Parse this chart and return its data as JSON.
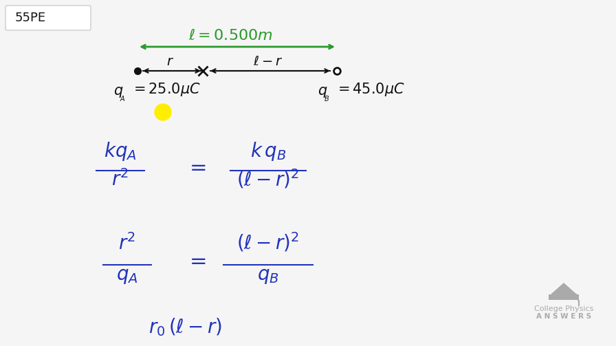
{
  "bg_color": "#f5f5f5",
  "title_box_text": "55PE",
  "title_box_color": "#ffffff",
  "title_box_border": "#cccccc",
  "green_color": "#2a9a2a",
  "blue_color": "#2233bb",
  "dark_color": "#111111",
  "yellow_color": "#ffee00",
  "gray_color": "#aaaaaa"
}
